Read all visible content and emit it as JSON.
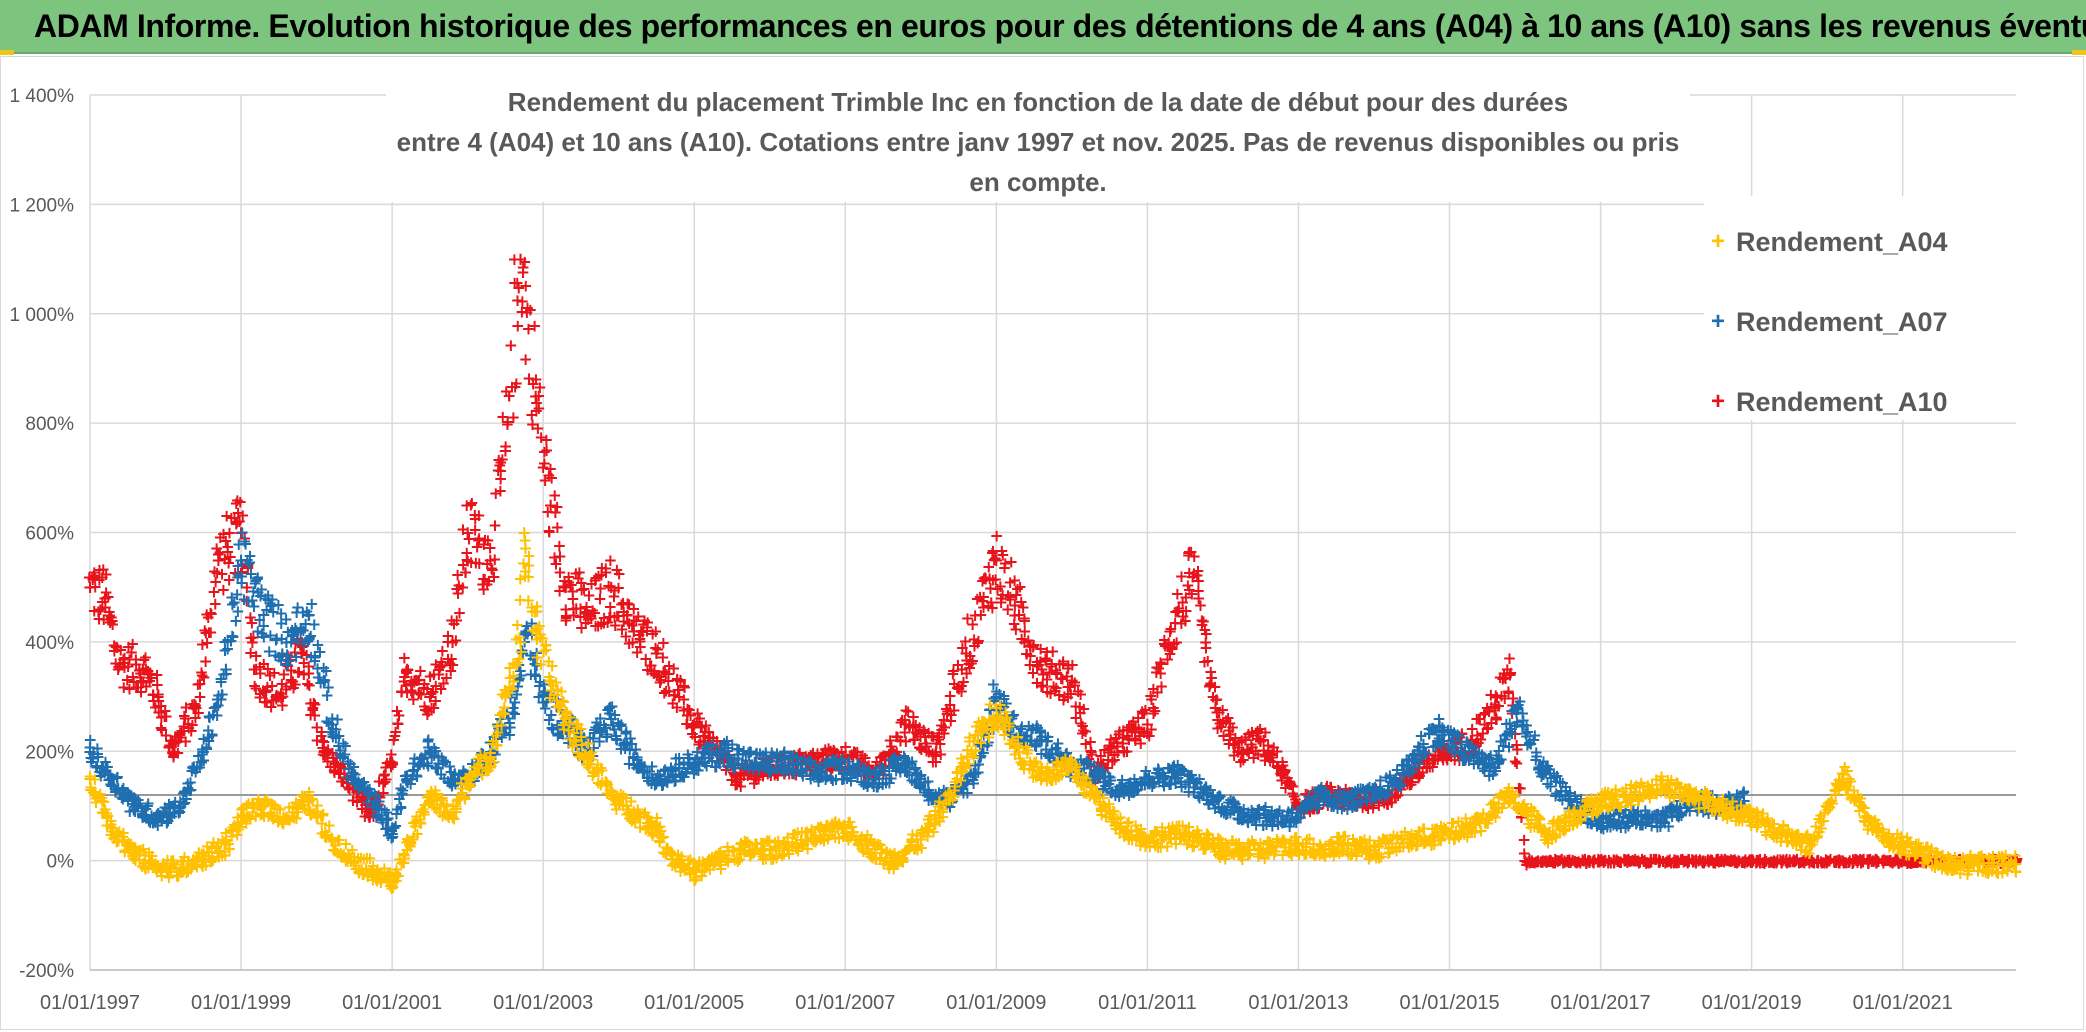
{
  "header": {
    "title": "ADAM Informe. Evolution historique des performances en euros pour des détentions de 4 ans (A04) à 10 ans (A10) sans les revenus éventuels",
    "background": "#7dc47f"
  },
  "chart_data": {
    "type": "scatter",
    "title_line1": "Rendement du placement Trimble Inc en fonction de la date de début pour des durées",
    "title_line2": "entre 4 (A04) et 10 ans (A10). Cotations entre janv 1997 et nov. 2025. Pas de revenus disponibles ou pris en compte.",
    "xlabel": "",
    "ylabel": "",
    "x_range": [
      "1997-01-01",
      "2022-06-01"
    ],
    "ylim": [
      -200,
      1400
    ],
    "y_unit": "%",
    "grid": true,
    "legend_position": "right",
    "y_ticks": [
      "1 400%",
      "1 200%",
      "1 000%",
      "800%",
      "600%",
      "400%",
      "200%",
      "0%",
      "-200%"
    ],
    "y_tick_values": [
      1400,
      1200,
      1000,
      800,
      600,
      400,
      200,
      0,
      -200
    ],
    "x_ticks": [
      "01/01/1997",
      "01/01/1999",
      "01/01/2001",
      "01/01/2003",
      "01/01/2005",
      "01/01/2007",
      "01/01/2009",
      "01/01/2011",
      "01/01/2013",
      "01/01/2015",
      "01/01/2017",
      "01/01/2019",
      "01/01/2021"
    ],
    "x_tick_years": [
      1997,
      1999,
      2001,
      2003,
      2005,
      2007,
      2009,
      2011,
      2013,
      2015,
      2017,
      2019,
      2021
    ],
    "reference_line_y": 120,
    "series": [
      {
        "name": "Rendement_A04",
        "color": "#ffc000",
        "points": [
          [
            1997.0,
            150
          ],
          [
            1997.3,
            60
          ],
          [
            1997.6,
            10
          ],
          [
            1997.9,
            -10
          ],
          [
            1998.2,
            -15
          ],
          [
            1998.5,
            5
          ],
          [
            1998.8,
            30
          ],
          [
            1999.0,
            80
          ],
          [
            1999.3,
            100
          ],
          [
            1999.6,
            80
          ],
          [
            1999.9,
            110
          ],
          [
            2000.2,
            40
          ],
          [
            2000.5,
            0
          ],
          [
            2000.8,
            -20
          ],
          [
            2001.0,
            -40
          ],
          [
            2001.2,
            20
          ],
          [
            2001.5,
            120
          ],
          [
            2001.8,
            80
          ],
          [
            2002.0,
            150
          ],
          [
            2002.3,
            190
          ],
          [
            2002.5,
            300
          ],
          [
            2002.7,
            400
          ],
          [
            2002.75,
            600
          ],
          [
            2002.9,
            420
          ],
          [
            2003.1,
            330
          ],
          [
            2003.3,
            260
          ],
          [
            2003.6,
            190
          ],
          [
            2003.9,
            120
          ],
          [
            2004.2,
            90
          ],
          [
            2004.5,
            60
          ],
          [
            2004.7,
            10
          ],
          [
            2005.0,
            -20
          ],
          [
            2005.3,
            0
          ],
          [
            2005.6,
            20
          ],
          [
            2006.0,
            20
          ],
          [
            2006.5,
            40
          ],
          [
            2007.0,
            60
          ],
          [
            2007.3,
            30
          ],
          [
            2007.6,
            0
          ],
          [
            2008.0,
            40
          ],
          [
            2008.4,
            120
          ],
          [
            2008.7,
            220
          ],
          [
            2009.0,
            280
          ],
          [
            2009.3,
            200
          ],
          [
            2009.6,
            160
          ],
          [
            2010.0,
            170
          ],
          [
            2010.3,
            120
          ],
          [
            2010.6,
            70
          ],
          [
            2011.0,
            40
          ],
          [
            2011.5,
            50
          ],
          [
            2012.0,
            20
          ],
          [
            2012.5,
            20
          ],
          [
            2013.0,
            30
          ],
          [
            2013.3,
            20
          ],
          [
            2013.6,
            30
          ],
          [
            2014.0,
            20
          ],
          [
            2014.5,
            40
          ],
          [
            2015.0,
            50
          ],
          [
            2015.4,
            70
          ],
          [
            2015.8,
            120
          ],
          [
            2016.0,
            90
          ],
          [
            2016.3,
            50
          ],
          [
            2016.6,
            80
          ],
          [
            2017.0,
            110
          ],
          [
            2017.4,
            120
          ],
          [
            2017.8,
            140
          ],
          [
            2018.2,
            120
          ],
          [
            2018.6,
            100
          ],
          [
            2019.0,
            80
          ],
          [
            2019.4,
            50
          ],
          [
            2019.8,
            30
          ],
          [
            2020.2,
            160
          ],
          [
            2020.5,
            80
          ],
          [
            2020.8,
            40
          ],
          [
            2021.2,
            20
          ],
          [
            2021.6,
            -10
          ],
          [
            2022.0,
            -5
          ],
          [
            2022.5,
            -5
          ]
        ]
      },
      {
        "name": "Rendement_A07",
        "color": "#1f6fb0",
        "points": [
          [
            1997.0,
            200
          ],
          [
            1997.3,
            150
          ],
          [
            1997.6,
            100
          ],
          [
            1997.9,
            80
          ],
          [
            1998.2,
            100
          ],
          [
            1998.5,
            200
          ],
          [
            1998.8,
            350
          ],
          [
            1999.0,
            550
          ],
          [
            1999.3,
            450
          ],
          [
            1999.6,
            400
          ],
          [
            1999.9,
            450
          ],
          [
            2000.2,
            250
          ],
          [
            2000.5,
            150
          ],
          [
            2000.8,
            100
          ],
          [
            2001.0,
            50
          ],
          [
            2001.2,
            150
          ],
          [
            2001.5,
            200
          ],
          [
            2001.8,
            150
          ],
          [
            2002.0,
            150
          ],
          [
            2002.3,
            200
          ],
          [
            2002.6,
            280
          ],
          [
            2002.8,
            420
          ],
          [
            2003.0,
            290
          ],
          [
            2003.3,
            250
          ],
          [
            2003.6,
            200
          ],
          [
            2003.9,
            260
          ],
          [
            2004.2,
            190
          ],
          [
            2004.5,
            150
          ],
          [
            2004.8,
            170
          ],
          [
            2005.0,
            180
          ],
          [
            2005.4,
            200
          ],
          [
            2005.8,
            180
          ],
          [
            2006.2,
            180
          ],
          [
            2006.6,
            160
          ],
          [
            2007.0,
            170
          ],
          [
            2007.4,
            150
          ],
          [
            2007.8,
            180
          ],
          [
            2008.1,
            130
          ],
          [
            2008.4,
            110
          ],
          [
            2008.7,
            160
          ],
          [
            2009.0,
            300
          ],
          [
            2009.3,
            230
          ],
          [
            2009.6,
            220
          ],
          [
            2010.0,
            170
          ],
          [
            2010.3,
            160
          ],
          [
            2010.6,
            130
          ],
          [
            2011.0,
            150
          ],
          [
            2011.4,
            160
          ],
          [
            2011.8,
            120
          ],
          [
            2012.2,
            90
          ],
          [
            2012.6,
            80
          ],
          [
            2013.0,
            80
          ],
          [
            2013.3,
            120
          ],
          [
            2013.6,
            110
          ],
          [
            2014.0,
            120
          ],
          [
            2014.4,
            160
          ],
          [
            2014.8,
            240
          ],
          [
            2015.2,
            200
          ],
          [
            2015.6,
            170
          ],
          [
            2015.9,
            280
          ],
          [
            2016.2,
            170
          ],
          [
            2016.6,
            110
          ],
          [
            2017.0,
            70
          ],
          [
            2017.4,
            80
          ],
          [
            2017.8,
            70
          ],
          [
            2018.2,
            110
          ],
          [
            2018.6,
            100
          ],
          [
            2018.9,
            110
          ]
        ]
      },
      {
        "name": "Rendement_A10",
        "color": "#e8141c",
        "points": [
          [
            1997.0,
            500
          ],
          [
            1997.2,
            480
          ],
          [
            1997.4,
            360
          ],
          [
            1997.7,
            350
          ],
          [
            1997.9,
            300
          ],
          [
            1998.1,
            200
          ],
          [
            1998.4,
            280
          ],
          [
            1998.7,
            550
          ],
          [
            1999.0,
            600
          ],
          [
            1999.2,
            350
          ],
          [
            1999.5,
            300
          ],
          [
            1999.8,
            380
          ],
          [
            2000.1,
            200
          ],
          [
            2000.4,
            150
          ],
          [
            2000.7,
            80
          ],
          [
            2001.0,
            180
          ],
          [
            2001.2,
            350
          ],
          [
            2001.5,
            300
          ],
          [
            2001.8,
            400
          ],
          [
            2002.0,
            600
          ],
          [
            2002.3,
            550
          ],
          [
            2002.5,
            750
          ],
          [
            2002.7,
            1100
          ],
          [
            2002.9,
            850
          ],
          [
            2003.1,
            650
          ],
          [
            2003.3,
            500
          ],
          [
            2003.6,
            450
          ],
          [
            2003.9,
            500
          ],
          [
            2004.2,
            420
          ],
          [
            2004.5,
            380
          ],
          [
            2004.8,
            300
          ],
          [
            2005.0,
            250
          ],
          [
            2005.3,
            200
          ],
          [
            2005.6,
            150
          ],
          [
            2006.0,
            170
          ],
          [
            2006.5,
            180
          ],
          [
            2007.0,
            190
          ],
          [
            2007.4,
            160
          ],
          [
            2007.8,
            250
          ],
          [
            2008.2,
            200
          ],
          [
            2008.6,
            380
          ],
          [
            2009.0,
            550
          ],
          [
            2009.3,
            450
          ],
          [
            2009.6,
            350
          ],
          [
            2010.0,
            330
          ],
          [
            2010.3,
            160
          ],
          [
            2010.6,
            210
          ],
          [
            2011.0,
            250
          ],
          [
            2011.3,
            420
          ],
          [
            2011.6,
            520
          ],
          [
            2011.9,
            280
          ],
          [
            2012.2,
            200
          ],
          [
            2012.5,
            220
          ],
          [
            2012.8,
            160
          ],
          [
            2013.0,
            100
          ],
          [
            2013.4,
            120
          ],
          [
            2013.8,
            110
          ],
          [
            2014.2,
            120
          ],
          [
            2014.6,
            170
          ],
          [
            2015.0,
            200
          ],
          [
            2015.3,
            220
          ],
          [
            2015.6,
            280
          ],
          [
            2015.8,
            340
          ],
          [
            2016.0,
            0
          ],
          [
            2017.0,
            0
          ],
          [
            2018.0,
            0
          ],
          [
            2019.0,
            0
          ],
          [
            2020.0,
            0
          ],
          [
            2021.0,
            0
          ],
          [
            2022.0,
            0
          ],
          [
            2022.5,
            0
          ]
        ]
      }
    ]
  }
}
